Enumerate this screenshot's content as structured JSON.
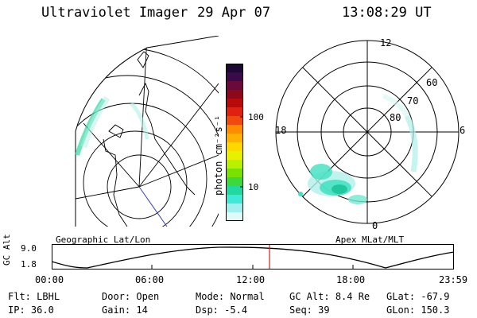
{
  "header": {
    "instrument": "Ultraviolet Imager",
    "date": "29 Apr 07",
    "time": "13:08:29 UT"
  },
  "colorbar": {
    "unit_label": "photon cm⁻²s⁻¹",
    "ticks": [
      "100",
      "10"
    ],
    "colors": [
      "#1a0a33",
      "#3a0a4a",
      "#6a0a3a",
      "#8a0a1a",
      "#b80a0a",
      "#e02010",
      "#f04a10",
      "#ff8c00",
      "#ffb000",
      "#ffd800",
      "#e8f000",
      "#b8f000",
      "#7ae000",
      "#3ed83a",
      "#20d8a0",
      "#40e8d8",
      "#a0f0f0",
      "#e0fafa"
    ]
  },
  "geo_panel": {
    "label": "Geographic Lat/Lon"
  },
  "polar_panel": {
    "label": "Apex MLat/MLT",
    "mlt_labels": {
      "top": "12",
      "left": "18",
      "right": "6",
      "bottom": "0"
    },
    "lat_labels": [
      "60",
      "70",
      "80"
    ]
  },
  "altitude_plot": {
    "ylabel": "GC Alt",
    "yticks": [
      "9.0",
      "1.8"
    ],
    "xticks": [
      "00:00",
      "06:00",
      "12:00",
      "18:00",
      "23:59"
    ],
    "marker_time": "13:08"
  },
  "info_rows": [
    [
      {
        "key": "Flt:",
        "value": "LBHL"
      },
      {
        "key": "Door:",
        "value": "Open"
      },
      {
        "key": "Mode:",
        "value": "Normal"
      },
      {
        "key": "GC Alt:",
        "value": "8.4 Re"
      },
      {
        "key": "GLat:",
        "value": "-67.9"
      }
    ],
    [
      {
        "key": "IP:",
        "value": "36.0"
      },
      {
        "key": "Gain:",
        "value": "14"
      },
      {
        "key": "Dsp:",
        "value": "-5.4"
      },
      {
        "key": "Seq:",
        "value": "39"
      },
      {
        "key": "GLon:",
        "value": "150.3"
      }
    ]
  ]
}
